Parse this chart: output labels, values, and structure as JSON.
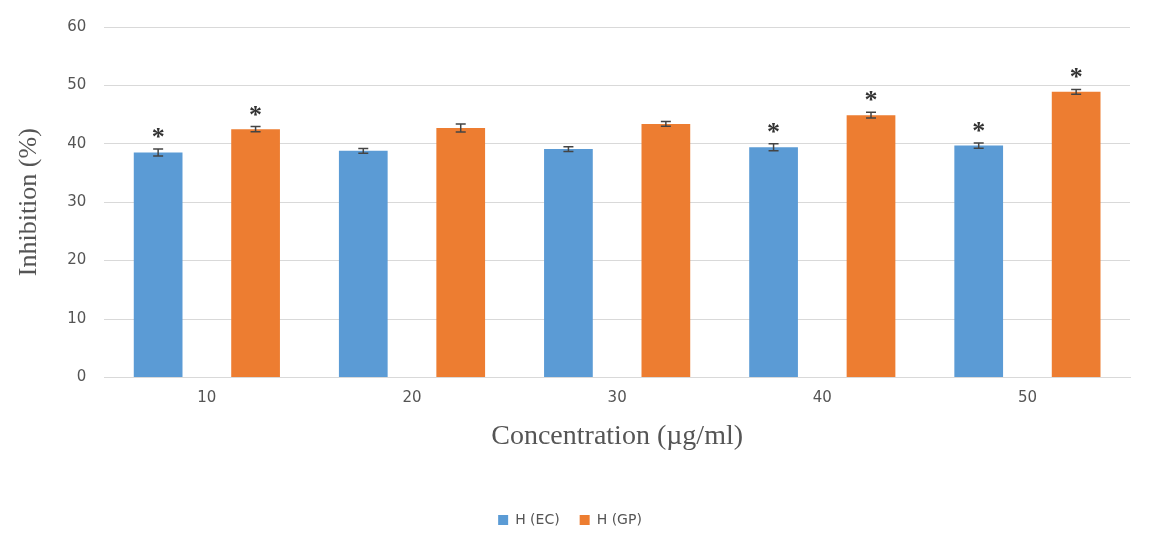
{
  "chart_data": {
    "type": "bar",
    "xlabel": "Concentration (µg/ml)",
    "ylabel": "Inhibition (%)",
    "categories": [
      "10",
      "20",
      "30",
      "40",
      "50"
    ],
    "series": [
      {
        "name": "H (EC)",
        "color": "#5b9bd5",
        "values": [
          38.5,
          38.8,
          39.1,
          39.4,
          39.7
        ],
        "errors": [
          0.6,
          0.4,
          0.4,
          0.6,
          0.45
        ],
        "value_labels": [
          "*",
          null,
          null,
          "*",
          "*"
        ]
      },
      {
        "name": "H (GP)",
        "color": "#ed7d31",
        "values": [
          42.5,
          42.7,
          43.4,
          44.9,
          48.9
        ],
        "errors": [
          0.45,
          0.7,
          0.4,
          0.5,
          0.4
        ],
        "value_labels": [
          "*",
          null,
          null,
          "*",
          "*"
        ]
      }
    ],
    "ylim": [
      0,
      60
    ],
    "yticks": [
      0,
      10,
      20,
      30,
      40,
      50,
      60
    ],
    "grid": "y",
    "legend": "bottom"
  }
}
